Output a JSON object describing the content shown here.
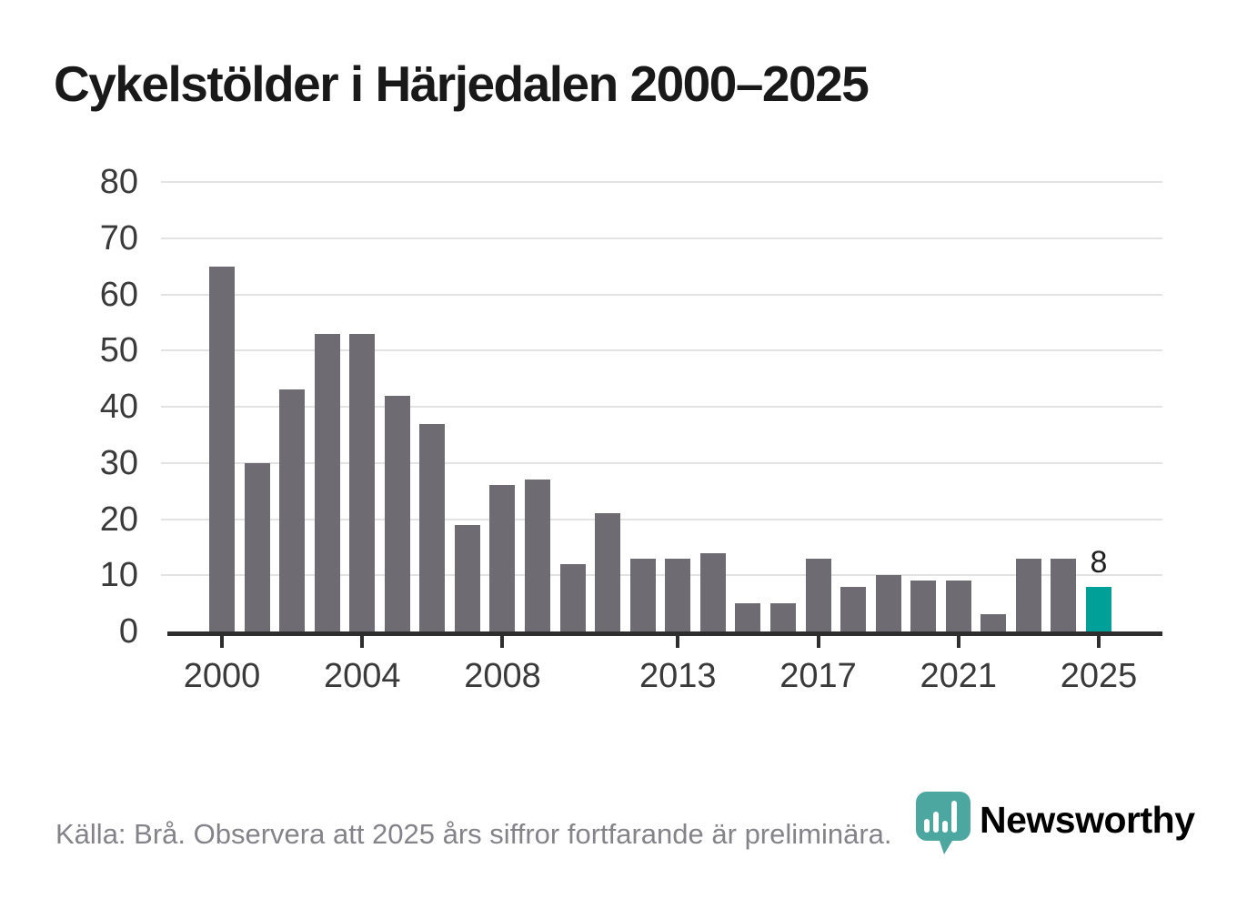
{
  "title": "Cykelstölder i Härjedalen 2000–2025",
  "footer": {
    "source_note": "Källa: Brå. Observera att 2025 års siffror fortfarande är preliminära."
  },
  "branding": {
    "logo_text": "Newsworthy",
    "logo_icon": "chart-speech-bubble-icon",
    "logo_text_color": "#3d9b94",
    "logo_icon_color": "#4ba79f"
  },
  "chart_data": {
    "type": "bar",
    "title": "Cykelstölder i Härjedalen 2000–2025",
    "categories": [
      2000,
      2001,
      2002,
      2003,
      2004,
      2005,
      2006,
      2007,
      2008,
      2009,
      2010,
      2011,
      2012,
      2013,
      2014,
      2015,
      2016,
      2017,
      2018,
      2019,
      2020,
      2021,
      2022,
      2023,
      2024,
      2025
    ],
    "values": [
      65,
      30,
      43,
      53,
      53,
      42,
      37,
      19,
      26,
      27,
      12,
      21,
      13,
      13,
      14,
      5,
      5,
      13,
      8,
      10,
      9,
      9,
      3,
      13,
      13,
      8
    ],
    "bar_color": "#6f6b72",
    "highlight_index": 25,
    "highlight_color": "#00a099",
    "highlight_value_label": "8",
    "ylim": [
      0,
      80
    ],
    "y_ticks": [
      0,
      10,
      20,
      30,
      40,
      50,
      60,
      70,
      80
    ],
    "x_tick_years": [
      2000,
      2004,
      2008,
      2013,
      2017,
      2021,
      2025
    ],
    "grid": "horizontal",
    "grid_color": "#e3e3e3",
    "axis_color": "#2e2e2e",
    "xlabel": "",
    "ylabel": ""
  }
}
